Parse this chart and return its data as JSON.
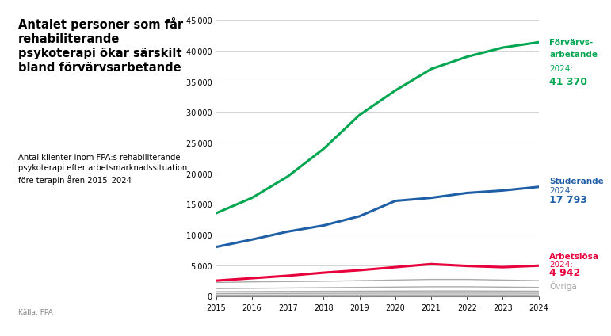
{
  "years": [
    2015,
    2016,
    2017,
    2018,
    2019,
    2020,
    2021,
    2022,
    2023,
    2024
  ],
  "forvarvs": [
    13500,
    16000,
    19500,
    24000,
    29500,
    33500,
    37000,
    39000,
    40500,
    41370
  ],
  "studerande": [
    8000,
    9200,
    10500,
    11500,
    13000,
    15500,
    16000,
    16800,
    17200,
    17793
  ],
  "arbetslosa": [
    2500,
    2900,
    3300,
    3800,
    4200,
    4700,
    5200,
    4900,
    4700,
    4942
  ],
  "ovriga": [
    [
      2200,
      2300,
      2350,
      2400,
      2500,
      2600,
      2700,
      2700,
      2600,
      2500
    ],
    [
      1200,
      1250,
      1300,
      1350,
      1400,
      1450,
      1500,
      1500,
      1450,
      1400
    ],
    [
      700,
      720,
      740,
      760,
      780,
      800,
      820,
      820,
      800,
      780
    ],
    [
      400,
      410,
      420,
      430,
      440,
      450,
      460,
      460,
      450,
      440
    ],
    [
      150,
      155,
      160,
      165,
      170,
      175,
      180,
      180,
      175,
      170
    ],
    [
      50,
      52,
      54,
      56,
      58,
      60,
      62,
      62,
      60,
      58
    ]
  ],
  "color_green": "#00a650",
  "color_blue": "#1f5fa6",
  "color_red": "#e8003d",
  "color_gray": "#aaaaaa",
  "color_bg": "#ffffff",
  "ylim": [
    0,
    45000
  ],
  "yticks": [
    0,
    5000,
    10000,
    15000,
    20000,
    25000,
    30000,
    35000,
    40000,
    45000
  ],
  "title_main": "Antalet personer som får\nrehabiliterande\npsykoterapi ökar särskilt\nbland förvärvsarbetande",
  "subtitle": "Antal klienter inom FPA:s rehabiliterande\npsykoterapi efter arbetsmarknadssituation\nföre terapin åren 2015–2024",
  "source": "Källa: FPA",
  "label_forvarvs_line1": "Förvärvs-",
  "label_forvarvs_line2": "arbetande",
  "label_forvarvs_year": "2024:",
  "label_forvarvs_val": "41 370",
  "label_stud_line": "Studerande",
  "label_stud_year": "2024:",
  "label_stud_val": "17 793",
  "label_arb_line": "Arbetslösa",
  "label_arb_year": "2024:",
  "label_arb_val": "4 942",
  "label_ovriga": "Övriga"
}
